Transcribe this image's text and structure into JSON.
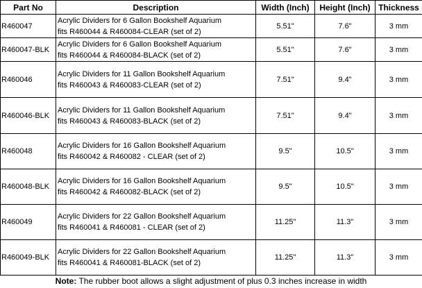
{
  "headers": [
    "Part No",
    "Description",
    "Width (Inch)",
    "Height (Inch)",
    "Thickness"
  ],
  "rows": [
    {
      "part": "R460047",
      "desc1": "Acrylic Dividers for 6 Gallon Bookshelf Aquarium",
      "desc2": "fits R460044 & R460084-CLEAR (set of 2)",
      "width": "5.51\"",
      "height": "7.6\"",
      "thickness": "3 mm"
    },
    {
      "part": "R460047-BLK",
      "desc1": "Acrylic Dividers for 6 Gallon Bookshelf Aquarium",
      "desc2": "fits R460044 & R460084-BLACK (set of 2)",
      "width": "5.51\"",
      "height": "7.6\"",
      "thickness": "3 mm"
    },
    {
      "part": "R460046",
      "desc1": "Acrylic Dividers for 11 Gallon Bookshelf Aquarium",
      "desc2": "fits R460043 & R460083-CLEAR (set of 2)",
      "width": "7.51\"",
      "height": "9.4\"",
      "thickness": "3 mm"
    },
    {
      "part": "R460046-BLK",
      "desc1": "Acrylic Dividers for 11 Gallon Bookshelf Aquarium",
      "desc2": "fits R460043 & R460083-BLACK (set of 2)",
      "width": "7.51\"",
      "height": "9.4\"",
      "thickness": "3 mm"
    },
    {
      "part": "R460048",
      "desc1": "Acrylic Dividers for 16 Gallon Bookshelf Aquarium",
      "desc2": "fits R460042 & R460082 - CLEAR (set of 2)",
      "width": "9.5\"",
      "height": "10.5\"",
      "thickness": "3 mm"
    },
    {
      "part": "R460048-BLK",
      "desc1": "Acrylic Dividers for 16 Gallon Bookshelf Aquarium",
      "desc2": "fits R460042 & R460082-BLACK (set of 2)",
      "width": "9.5\"",
      "height": "10.5\"",
      "thickness": "3 mm"
    },
    {
      "part": "R460049",
      "desc1": "Acrylic Dividers for 22 Gallon Bookshelf Aquarium",
      "desc2": "fits R460041 & R460081 - CLEAR (set of 2)",
      "width": "11.25\"",
      "height": "11.3\"",
      "thickness": "3 mm"
    },
    {
      "part": "R460049-BLK",
      "desc1": "Acrylic Dividers for 22 Gallon Bookshelf Aquarium",
      "desc2": "fits R460041 & R460081-BLACK (set of 2)",
      "width": "11.25\"",
      "height": "11.3\"",
      "thickness": "3 mm"
    }
  ],
  "note": {
    "label": "Note:",
    "text": " The rubber boot allows a slight adjustment of plus 0.3 inches increase in width"
  }
}
